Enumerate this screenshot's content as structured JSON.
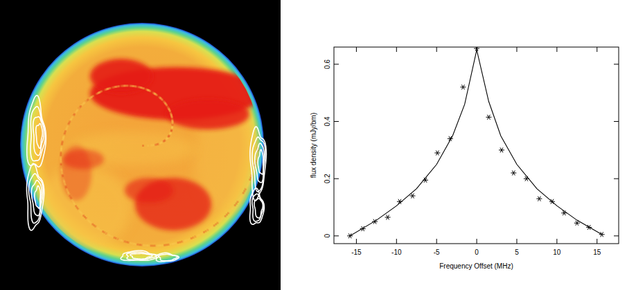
{
  "chart_data": {
    "type": "line",
    "xlabel": "Frequency Offset (MHz)",
    "ylabel": "flux density (mJy/bm)",
    "xlim": [
      -17.8,
      17.7
    ],
    "ylim": [
      -0.027,
      0.66
    ],
    "xticks": [
      -15,
      -10,
      -5,
      0,
      5,
      10,
      15
    ],
    "yticks": [
      0,
      0.2,
      0.4,
      0.6
    ],
    "grid": false,
    "color": "#000000",
    "series": [
      {
        "type": "scatter",
        "marker": "asterisk",
        "color": "#000000",
        "x": [
          -15.8,
          -14.2,
          -12.7,
          -11.1,
          -9.6,
          -8.0,
          -6.4,
          -4.9,
          -3.3,
          -1.7,
          0,
          1.5,
          3.1,
          4.6,
          6.2,
          7.8,
          9.4,
          10.9,
          12.5,
          14.0,
          15.6
        ],
        "values": [
          0.0,
          0.025,
          0.05,
          0.065,
          0.12,
          0.14,
          0.195,
          0.29,
          0.34,
          0.52,
          0.655,
          0.415,
          0.3,
          0.22,
          0.2,
          0.13,
          0.12,
          0.08,
          0.045,
          0.03,
          0.005
        ]
      },
      {
        "type": "line",
        "line_style": "solid",
        "color": "#000000",
        "x": [
          -15.8,
          -12.5,
          -10,
          -7.5,
          -5,
          -3,
          -1.5,
          0,
          1.5,
          3,
          5,
          7.5,
          10,
          12.5,
          15.6
        ],
        "values": [
          0.0,
          0.055,
          0.105,
          0.165,
          0.25,
          0.35,
          0.46,
          0.65,
          0.47,
          0.35,
          0.25,
          0.165,
          0.105,
          0.055,
          0.005
        ]
      }
    ]
  }
}
